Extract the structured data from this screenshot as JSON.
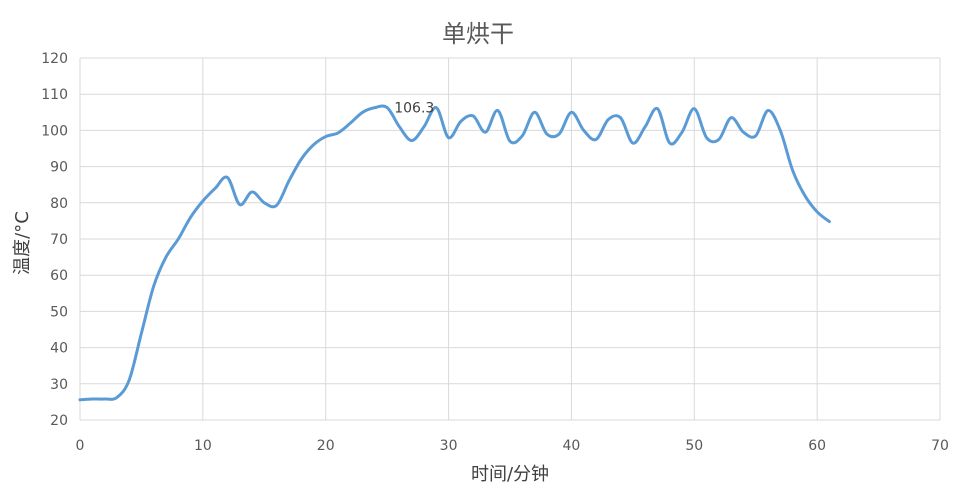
{
  "chart_data": {
    "type": "line",
    "title": "单烘干",
    "xlabel": "时间/分钟",
    "ylabel": "温度/°C",
    "xlim": [
      0,
      70
    ],
    "ylim": [
      20,
      120
    ],
    "xticks": [
      "0",
      "10",
      "20",
      "30",
      "40",
      "50",
      "60",
      "70"
    ],
    "yticks": [
      "20",
      "30",
      "40",
      "50",
      "60",
      "70",
      "80",
      "90",
      "100",
      "110",
      "120"
    ],
    "grid": true,
    "legend": "none",
    "line_color": "#5B9BD5",
    "annotations": [
      {
        "text": "106.3",
        "x": 29,
        "y": 106.3
      }
    ],
    "series": [
      {
        "x": [
          0,
          1,
          2,
          3,
          4,
          5,
          6,
          7,
          8,
          9,
          10,
          11,
          12,
          13,
          14,
          15,
          16,
          17,
          18,
          19,
          20,
          21,
          22,
          23,
          24,
          25,
          26,
          27,
          28,
          29,
          30,
          31,
          32,
          33,
          34,
          35,
          36,
          37,
          38,
          39,
          40,
          41,
          42,
          43,
          44,
          45,
          46,
          47,
          48,
          49,
          50,
          51,
          52,
          53,
          54,
          55,
          56,
          57,
          58,
          59,
          60,
          61
        ],
        "y": [
          25.6,
          25.8,
          25.8,
          26.2,
          31,
          44,
          57,
          65,
          70,
          76,
          80.5,
          84,
          87,
          79.5,
          83,
          80,
          79.3,
          86,
          92,
          96,
          98.3,
          99.3,
          102,
          105,
          106.3,
          106.3,
          101,
          97.2,
          101,
          106.3,
          98,
          102.5,
          104,
          99.5,
          105.5,
          97,
          98.5,
          105,
          99,
          99,
          105,
          100,
          97.5,
          103,
          103.5,
          96.5,
          101,
          106,
          96.5,
          99.5,
          106,
          98,
          97.5,
          103.5,
          99.5,
          98.5,
          105.5,
          100,
          89,
          82,
          77.5,
          74.8
        ]
      }
    ]
  }
}
